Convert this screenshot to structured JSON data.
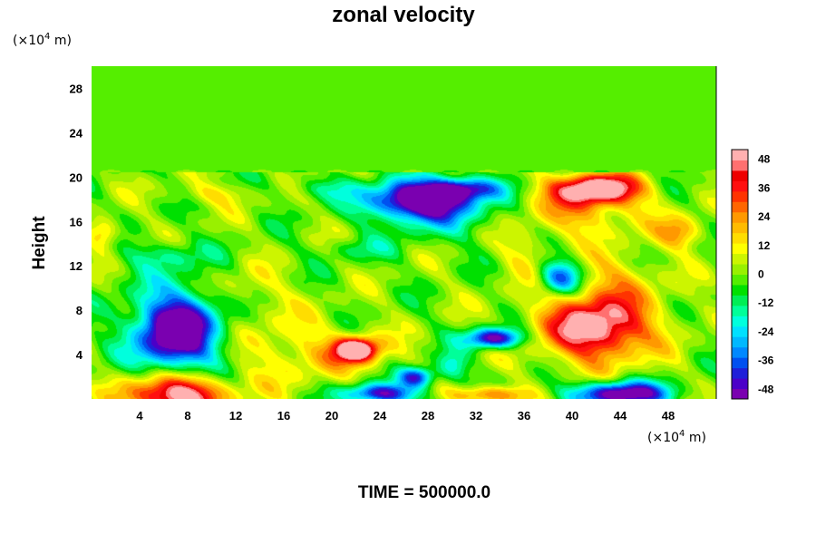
{
  "chart_data": {
    "type": "heatmap",
    "title": "zonal velocity",
    "xlabel": "",
    "ylabel": "Height",
    "x_unit_prefix": "(×10",
    "x_unit_exp": "4",
    "x_unit_suffix": " m)",
    "y_unit_prefix": "(×10",
    "y_unit_exp": "4",
    "y_unit_suffix": " m)",
    "xlim": [
      0,
      52
    ],
    "ylim": [
      0,
      30
    ],
    "x_ticks": [
      "4",
      "8",
      "12",
      "16",
      "20",
      "24",
      "28",
      "32",
      "36",
      "40",
      "44",
      "48"
    ],
    "y_ticks": [
      "4",
      "8",
      "12",
      "16",
      "20",
      "24",
      "28"
    ],
    "colorbar": {
      "range": [
        -52,
        52
      ],
      "labels": [
        "48",
        "36",
        "24",
        "12",
        "0",
        "-12",
        "-24",
        "-36",
        "-48"
      ],
      "colors": [
        "#7a00b0",
        "#4b00c8",
        "#1f1fd8",
        "#0050f0",
        "#0088ff",
        "#00b8ff",
        "#00e0ff",
        "#00ffdd",
        "#00ff99",
        "#00ee55",
        "#00e000",
        "#55ee00",
        "#99f000",
        "#ccf500",
        "#ffff00",
        "#ffdd00",
        "#ffbb00",
        "#ff9900",
        "#ff6600",
        "#ff3300",
        "#ff1010",
        "#ee0000",
        "#ff7070",
        "#ffb0b0"
      ]
    },
    "blobs": [
      {
        "x": 7,
        "y": 6,
        "sx": 3.2,
        "sy": 3.2,
        "v": -56
      },
      {
        "x": 7,
        "y": 7,
        "sx": 5,
        "sy": 5,
        "v": -12
      },
      {
        "x": 7,
        "y": 0.4,
        "sx": 4,
        "sy": 1.8,
        "v": 60
      },
      {
        "x": 27,
        "y": 18,
        "sx": 4,
        "sy": 1.6,
        "v": -56
      },
      {
        "x": 31,
        "y": 19,
        "sx": 3,
        "sy": 1,
        "v": -40
      },
      {
        "x": 29,
        "y": 17,
        "sx": 5,
        "sy": 2.5,
        "v": -18
      },
      {
        "x": 42,
        "y": 19,
        "sx": 3.5,
        "sy": 1.3,
        "v": 58
      },
      {
        "x": 41,
        "y": 17,
        "sx": 5,
        "sy": 2.5,
        "v": 20
      },
      {
        "x": 42,
        "y": 6.5,
        "sx": 4,
        "sy": 2.8,
        "v": 44
      },
      {
        "x": 42,
        "y": 7,
        "sx": 6,
        "sy": 4,
        "v": 14
      },
      {
        "x": 39,
        "y": 11,
        "sx": 1.8,
        "sy": 1.5,
        "v": -40
      },
      {
        "x": 44,
        "y": 0.5,
        "sx": 4,
        "sy": 1.1,
        "v": -58
      },
      {
        "x": 22,
        "y": 4.5,
        "sx": 1.7,
        "sy": 1,
        "v": 60
      },
      {
        "x": 22,
        "y": 4,
        "sx": 3.5,
        "sy": 2,
        "v": 15
      },
      {
        "x": 33.5,
        "y": 5.5,
        "sx": 2.3,
        "sy": 0.9,
        "v": -55
      },
      {
        "x": 27,
        "y": 2,
        "sx": 1.5,
        "sy": 0.9,
        "v": -45
      },
      {
        "x": 24,
        "y": 0.5,
        "sx": 3,
        "sy": 0.9,
        "v": -48
      },
      {
        "x": 33,
        "y": 0.4,
        "sx": 3,
        "sy": 0.8,
        "v": 32
      },
      {
        "x": 30,
        "y": 3,
        "sx": 1.3,
        "sy": 1.3,
        "v": -20
      },
      {
        "x": 16,
        "y": 4.5,
        "sx": 4,
        "sy": 3.5,
        "v": 14
      },
      {
        "x": 10,
        "y": 18.5,
        "sx": 3,
        "sy": 1,
        "v": 12
      },
      {
        "x": 13,
        "y": 10,
        "sx": 3,
        "sy": 2,
        "v": 10
      },
      {
        "x": 6,
        "y": 13,
        "sx": 3,
        "sy": 1.2,
        "v": -14
      },
      {
        "x": 22,
        "y": 13.5,
        "sx": 3,
        "sy": 1,
        "v": -10
      },
      {
        "x": 1,
        "y": 15,
        "sx": 1.3,
        "sy": 1.3,
        "v": 22
      },
      {
        "x": 49,
        "y": 15,
        "sx": 2,
        "sy": 1.5,
        "v": 22
      },
      {
        "x": 19,
        "y": 19,
        "sx": 3,
        "sy": 1,
        "v": -12
      },
      {
        "x": 44,
        "y": 11,
        "sx": 3,
        "sy": 2,
        "v": 12
      },
      {
        "x": 36,
        "y": 13,
        "sx": 2,
        "sy": 2,
        "v": 10
      }
    ],
    "top_layer": {
      "height": 20.5,
      "value": -2
    }
  },
  "footer": {
    "time_label": "TIME = 500000.0"
  }
}
